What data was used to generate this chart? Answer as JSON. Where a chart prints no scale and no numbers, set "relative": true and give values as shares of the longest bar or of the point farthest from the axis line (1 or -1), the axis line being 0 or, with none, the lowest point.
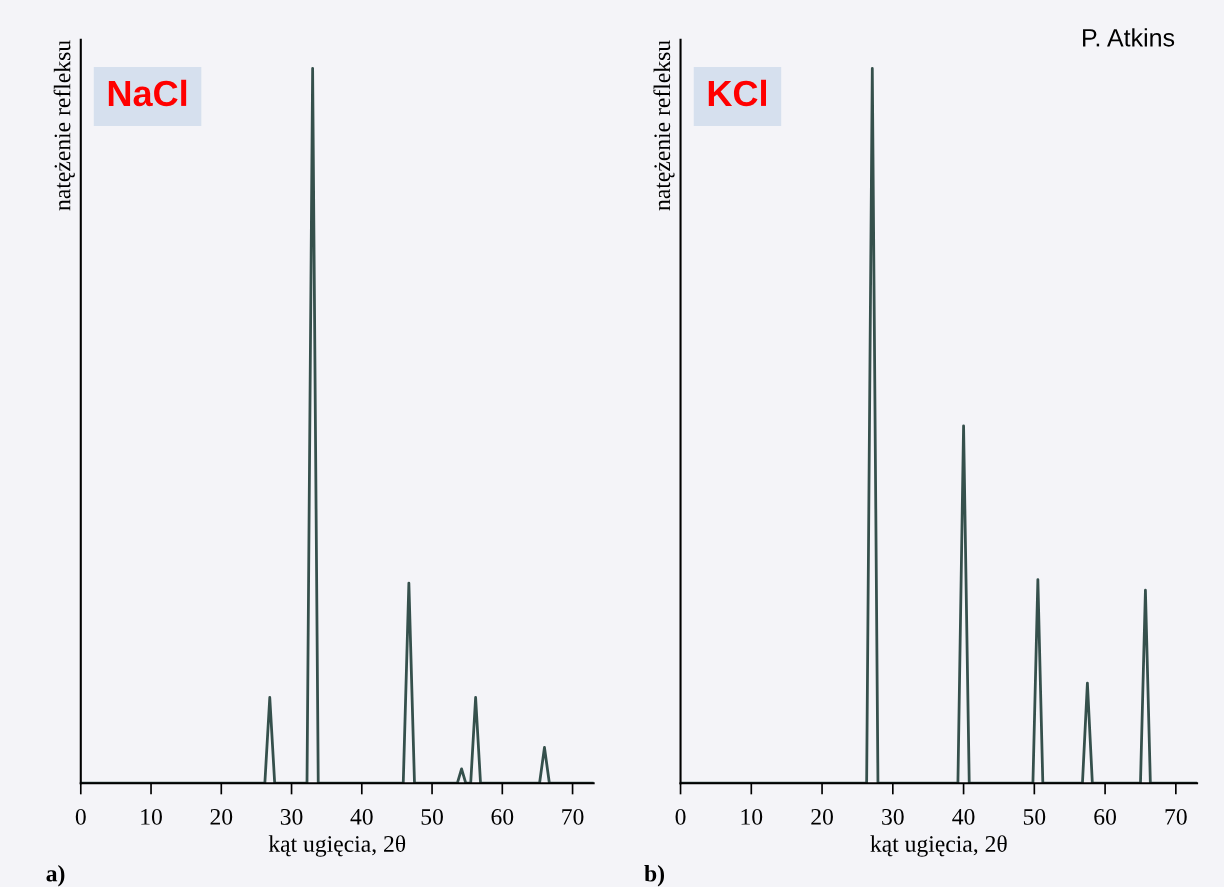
{
  "chart_data": [
    {
      "type": "line",
      "title": "NaCl",
      "xlabel": "kąt ugięcia, 2θ",
      "ylabel": "natężenie refleksu",
      "relative": true,
      "annotations": [
        "a)"
      ],
      "xlim": [
        0,
        73
      ],
      "xticks": [
        0,
        10,
        20,
        30,
        40,
        50,
        60,
        70
      ],
      "grid": false,
      "legend": false,
      "marker": "none",
      "line_style": "solid",
      "series": [
        {
          "color": "#35504c",
          "x": [
            0,
            26.2,
            26.9,
            27.6,
            32.2,
            33.0,
            33.8,
            45.9,
            46.7,
            47.5,
            53.6,
            54.2,
            54.8,
            55.5,
            56.2,
            56.9,
            65.3,
            66.0,
            66.7,
            73
          ],
          "values": [
            0,
            0,
            0.12,
            0,
            0,
            1,
            0,
            0,
            0.28,
            0,
            0,
            0.02,
            0,
            0,
            0.12,
            0,
            0,
            0.05,
            0,
            0
          ]
        }
      ]
    },
    {
      "type": "line",
      "title": "KCl",
      "xlabel": "kąt ugięcia, 2θ",
      "ylabel": "natężenie refleksu",
      "relative": true,
      "annotations": [
        "b)",
        "P. Atkins"
      ],
      "xlim": [
        0,
        73
      ],
      "xticks": [
        0,
        10,
        20,
        30,
        40,
        50,
        60,
        70
      ],
      "grid": false,
      "legend": false,
      "marker": "none",
      "line_style": "solid",
      "series": [
        {
          "color": "#35504c",
          "x": [
            0,
            26.3,
            27.1,
            27.9,
            39.2,
            40.0,
            40.8,
            49.8,
            50.5,
            51.2,
            56.8,
            57.5,
            58.2,
            65.0,
            65.7,
            66.4,
            73
          ],
          "values": [
            0,
            0,
            1,
            0,
            0,
            0.5,
            0,
            0,
            0.285,
            0,
            0,
            0.14,
            0,
            0,
            0.27,
            0,
            0
          ]
        }
      ]
    }
  ]
}
